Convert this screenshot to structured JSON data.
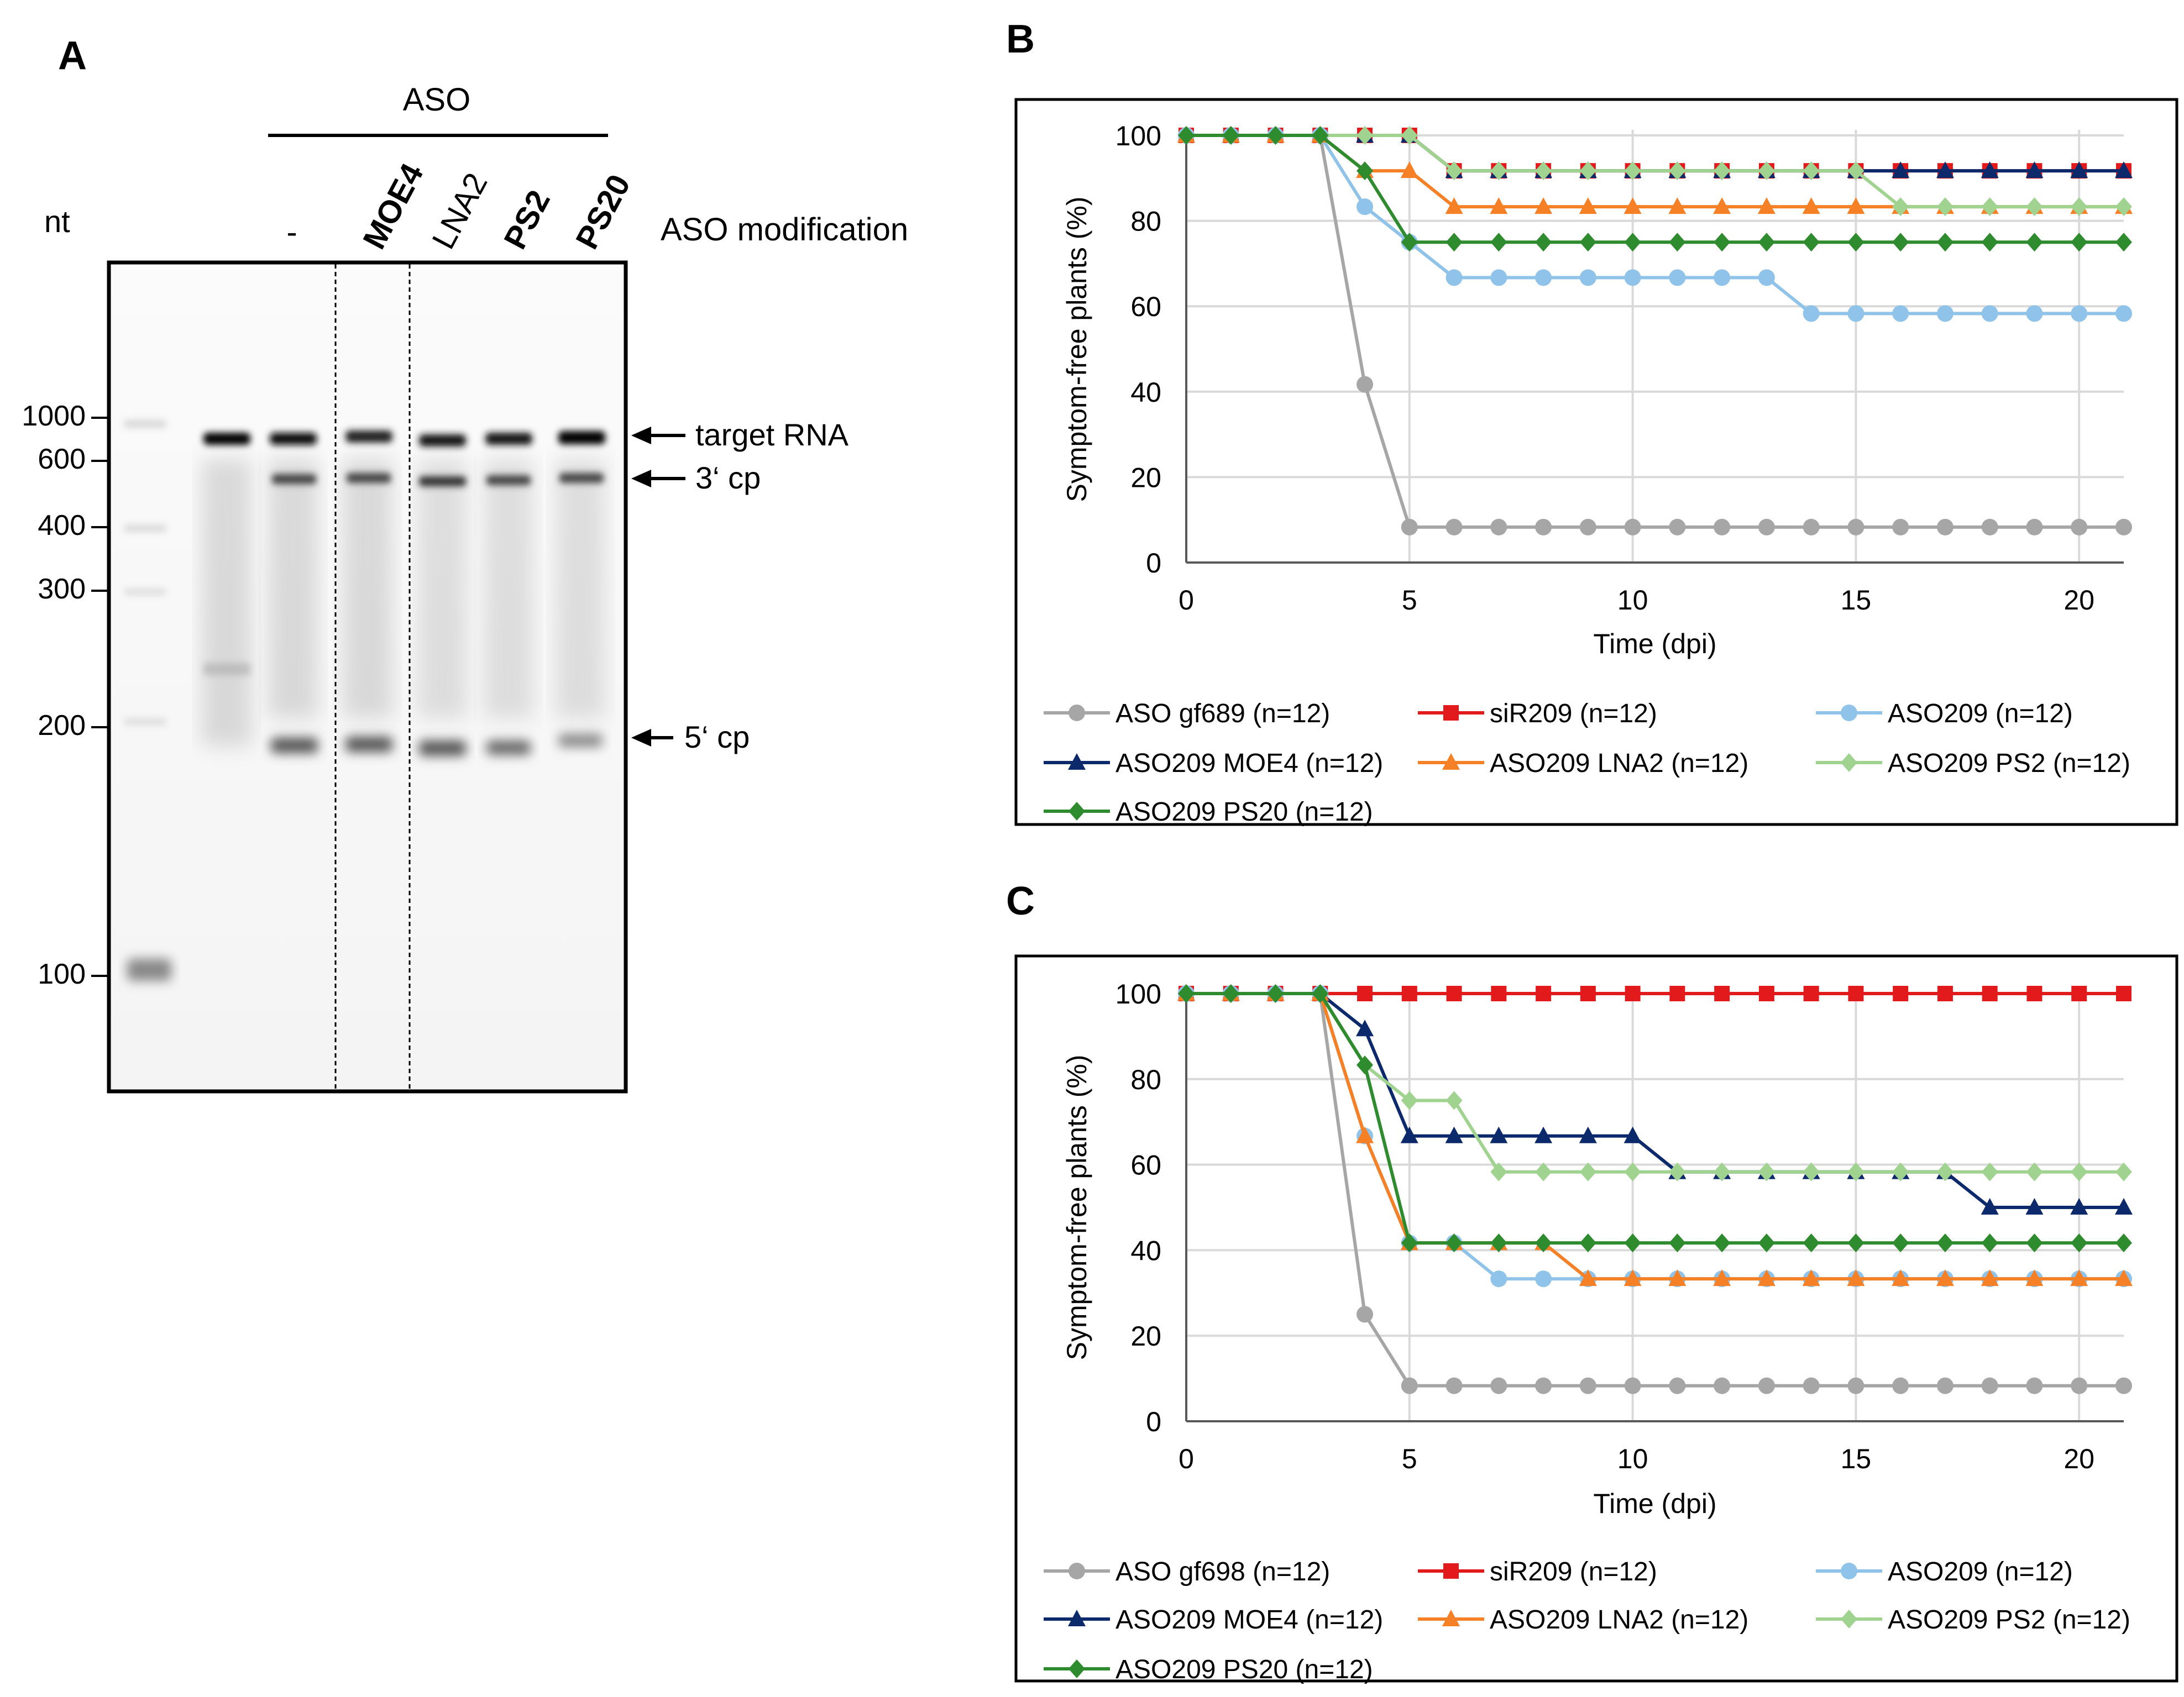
{
  "panel_a": {
    "label": "A",
    "aso_header": "ASO",
    "nt_label": "nt",
    "modification_label": "ASO modification",
    "lanes": [
      "-",
      "MOE4",
      "LNA2",
      "PS2",
      "PS20"
    ],
    "markers": [
      "1000",
      "600",
      "400",
      "300",
      "200",
      "100"
    ],
    "bands": [
      "target RNA",
      "3‘ cp",
      "5‘ cp"
    ]
  },
  "chart_data": [
    {
      "panel": "B",
      "type": "line",
      "title": "",
      "xlabel": "Time (dpi)",
      "ylabel": "Symptom-free plants (%)",
      "xlim": [
        0,
        21
      ],
      "ylim": [
        0,
        100
      ],
      "xticks": [
        0,
        5,
        10,
        15,
        20
      ],
      "yticks": [
        0,
        20,
        40,
        60,
        80,
        100
      ],
      "x": [
        0,
        1,
        2,
        3,
        4,
        5,
        6,
        7,
        8,
        9,
        10,
        11,
        12,
        13,
        14,
        15,
        16,
        17,
        18,
        19,
        20,
        21
      ],
      "series": [
        {
          "name": "ASO gf689 (n=12)",
          "color": "#a6a6a6",
          "marker": "circle",
          "values": [
            100,
            100,
            100,
            100,
            41.7,
            8.3,
            8.3,
            8.3,
            8.3,
            8.3,
            8.3,
            8.3,
            8.3,
            8.3,
            8.3,
            8.3,
            8.3,
            8.3,
            8.3,
            8.3,
            8.3,
            8.3
          ]
        },
        {
          "name": "siR209 (n=12)",
          "color": "#e31a1c",
          "marker": "square",
          "values": [
            100,
            100,
            100,
            100,
            100,
            100,
            91.7,
            91.7,
            91.7,
            91.7,
            91.7,
            91.7,
            91.7,
            91.7,
            91.7,
            91.7,
            91.7,
            91.7,
            91.7,
            91.7,
            91.7,
            91.7
          ]
        },
        {
          "name": "ASO209 (n=12)",
          "color": "#8fc3ea",
          "marker": "circle",
          "values": [
            100,
            100,
            100,
            100,
            83.3,
            75,
            66.7,
            66.7,
            66.7,
            66.7,
            66.7,
            66.7,
            66.7,
            66.7,
            58.3,
            58.3,
            58.3,
            58.3,
            58.3,
            58.3,
            58.3,
            58.3
          ]
        },
        {
          "name": "ASO209 MOE4 (n=12)",
          "color": "#0c2a6b",
          "marker": "triangle",
          "values": [
            100,
            100,
            100,
            100,
            100,
            100,
            91.7,
            91.7,
            91.7,
            91.7,
            91.7,
            91.7,
            91.7,
            91.7,
            91.7,
            91.7,
            91.7,
            91.7,
            91.7,
            91.7,
            91.7,
            91.7
          ]
        },
        {
          "name": "ASO209 LNA2 (n=12)",
          "color": "#f58025",
          "marker": "triangle",
          "values": [
            100,
            100,
            100,
            100,
            91.7,
            91.7,
            83.3,
            83.3,
            83.3,
            83.3,
            83.3,
            83.3,
            83.3,
            83.3,
            83.3,
            83.3,
            83.3,
            83.3,
            83.3,
            83.3,
            83.3,
            83.3
          ]
        },
        {
          "name": "ASO209 PS2 (n=12)",
          "color": "#9fd38f",
          "marker": "diamond",
          "values": [
            100,
            100,
            100,
            100,
            100,
            100,
            91.7,
            91.7,
            91.7,
            91.7,
            91.7,
            91.7,
            91.7,
            91.7,
            91.7,
            91.7,
            83.3,
            83.3,
            83.3,
            83.3,
            83.3,
            83.3
          ]
        },
        {
          "name": "ASO209 PS20 (n=12)",
          "color": "#2e8b2e",
          "marker": "diamond",
          "values": [
            100,
            100,
            100,
            100,
            91.7,
            75,
            75,
            75,
            75,
            75,
            75,
            75,
            75,
            75,
            75,
            75,
            75,
            75,
            75,
            75,
            75,
            75
          ]
        }
      ]
    },
    {
      "panel": "C",
      "type": "line",
      "title": "",
      "xlabel": "Time (dpi)",
      "ylabel": "Symptom-free plants (%)",
      "xlim": [
        0,
        21
      ],
      "ylim": [
        0,
        100
      ],
      "xticks": [
        0,
        5,
        10,
        15,
        20
      ],
      "yticks": [
        0,
        20,
        40,
        60,
        80,
        100
      ],
      "x": [
        0,
        1,
        2,
        3,
        4,
        5,
        6,
        7,
        8,
        9,
        10,
        11,
        12,
        13,
        14,
        15,
        16,
        17,
        18,
        19,
        20,
        21
      ],
      "series": [
        {
          "name": "ASO gf698 (n=12)",
          "color": "#a6a6a6",
          "marker": "circle",
          "values": [
            100,
            100,
            100,
            100,
            25,
            8.3,
            8.3,
            8.3,
            8.3,
            8.3,
            8.3,
            8.3,
            8.3,
            8.3,
            8.3,
            8.3,
            8.3,
            8.3,
            8.3,
            8.3,
            8.3,
            8.3
          ]
        },
        {
          "name": "siR209 (n=12)",
          "color": "#e31a1c",
          "marker": "square",
          "values": [
            100,
            100,
            100,
            100,
            100,
            100,
            100,
            100,
            100,
            100,
            100,
            100,
            100,
            100,
            100,
            100,
            100,
            100,
            100,
            100,
            100,
            100
          ]
        },
        {
          "name": "ASO209 (n=12)",
          "color": "#8fc3ea",
          "marker": "circle",
          "values": [
            100,
            100,
            100,
            100,
            66.7,
            41.7,
            41.7,
            33.3,
            33.3,
            33.3,
            33.3,
            33.3,
            33.3,
            33.3,
            33.3,
            33.3,
            33.3,
            33.3,
            33.3,
            33.3,
            33.3,
            33.3
          ]
        },
        {
          "name": "ASO209 MOE4 (n=12)",
          "color": "#0c2a6b",
          "marker": "triangle",
          "values": [
            100,
            100,
            100,
            100,
            91.7,
            66.7,
            66.7,
            66.7,
            66.7,
            66.7,
            66.7,
            58.3,
            58.3,
            58.3,
            58.3,
            58.3,
            58.3,
            58.3,
            50,
            50,
            50,
            50
          ]
        },
        {
          "name": "ASO209 LNA2 (n=12)",
          "color": "#f58025",
          "marker": "triangle",
          "values": [
            100,
            100,
            100,
            100,
            66.7,
            41.7,
            41.7,
            41.7,
            41.7,
            33.3,
            33.3,
            33.3,
            33.3,
            33.3,
            33.3,
            33.3,
            33.3,
            33.3,
            33.3,
            33.3,
            33.3,
            33.3
          ]
        },
        {
          "name": "ASO209 PS2 (n=12)",
          "color": "#9fd38f",
          "marker": "diamond",
          "values": [
            100,
            100,
            100,
            100,
            83.3,
            75,
            75,
            58.3,
            58.3,
            58.3,
            58.3,
            58.3,
            58.3,
            58.3,
            58.3,
            58.3,
            58.3,
            58.3,
            58.3,
            58.3,
            58.3,
            58.3
          ]
        },
        {
          "name": "ASO209 PS20 (n=12)",
          "color": "#2e8b2e",
          "marker": "diamond",
          "values": [
            100,
            100,
            100,
            100,
            83.3,
            41.7,
            41.7,
            41.7,
            41.7,
            41.7,
            41.7,
            41.7,
            41.7,
            41.7,
            41.7,
            41.7,
            41.7,
            41.7,
            41.7,
            41.7,
            41.7,
            41.7
          ]
        }
      ]
    }
  ]
}
